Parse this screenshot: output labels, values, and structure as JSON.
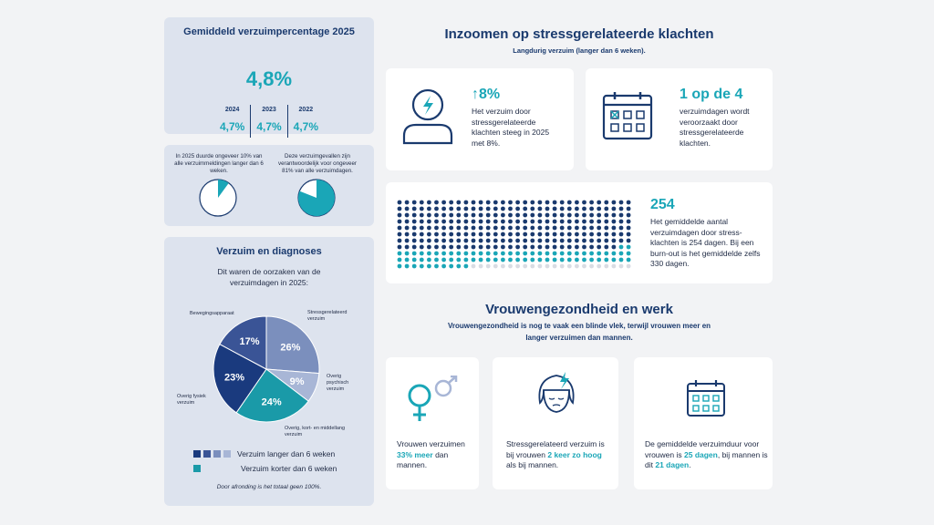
{
  "avg_panel": {
    "title": "Gemiddeld verzuimpercentage 2025",
    "value": "4,8%",
    "years": [
      {
        "year": "2024",
        "value": "4,7%"
      },
      {
        "year": "2023",
        "value": "4,7%"
      },
      {
        "year": "2022",
        "value": "4,7%"
      }
    ]
  },
  "long_panel": {
    "left_text": "In 2025 duurde ongeveer 10% van alle verzuimmeldingen langer dan 6 weken.",
    "right_text": "Deze verzuimgevallen zijn verantwoordelijk voor ongeveer 81% van alle verzuimdagen.",
    "left_fraction": 0.1,
    "right_fraction": 0.81
  },
  "diag_panel": {
    "title": "Verzuim en diagnoses",
    "subtitle": "Dit waren de oorzaken van de verzuimdagen in 2025:",
    "slices": [
      {
        "label": "Stressgerelateerd verzuim",
        "pct": "26%",
        "value": 26,
        "color": "#7b8fbd"
      },
      {
        "label": "Overig psychisch verzuim",
        "pct": "9%",
        "value": 9,
        "color": "#a8b6d6"
      },
      {
        "label": "Overig, kort- en middellang verzuim",
        "pct": "24%",
        "value": 24,
        "color": "#1a9aa8"
      },
      {
        "label": "Overig fysiek verzuim",
        "pct": "23%",
        "value": 23,
        "color": "#1a3a7e"
      },
      {
        "label": "Bewegingsapparaat",
        "pct": "17%",
        "value": 17,
        "color": "#3a5496"
      }
    ],
    "legend_long": "Verzuim langer dan 6 weken",
    "legend_short": "Verzuim korter dan 6 weken",
    "footnote": "Door afronding is het totaal geen 100%."
  },
  "stress": {
    "title": "Inzoomen op stressgerelateerde klachten",
    "subtitle": "Langdurig verzuim (langer dan 6 weken).",
    "card1": {
      "stat": "8%",
      "arrow": "↑",
      "text": "Het verzuim door stressgerelateerde klachten steeg in 2025 met 8%."
    },
    "card2": {
      "stat": "1 op de 4",
      "text": "verzuimdagen wordt veroorzaakt door stressgerelateerde klachten."
    },
    "card3": {
      "stat": "254",
      "text": "Het gemiddelde aantal verzuimdagen door stress-klachten is 254 dagen. Bij een burn-out is het gemiddelde zelfs 330 dagen.",
      "days_avg": 254,
      "days_burnout": 330
    }
  },
  "women": {
    "title": "Vrouwengezondheid en werk",
    "subtitle": "Vrouwengezondheid is nog te vaak een blinde vlek, terwijl vrouwen meer en langer verzuimen dan mannen.",
    "card1": {
      "pre": "Vrouwen verzuimen ",
      "hl": "33% meer",
      "post": " dan mannen."
    },
    "card2": {
      "pre": "Stressgerelateerd verzuim is bij vrouwen ",
      "hl": "2 keer zo hoog",
      "post": " als bij mannen."
    },
    "card3": {
      "pre": "De gemiddelde verzuimduur voor vrouwen is ",
      "hl": "25 dagen",
      "mid": ", bij mannen is dit ",
      "hl2": "21 dagen",
      "post": "."
    }
  },
  "colors": {
    "navy": "#1a3a6e",
    "teal": "#1aa6b7",
    "panel": "#dde3ee"
  }
}
